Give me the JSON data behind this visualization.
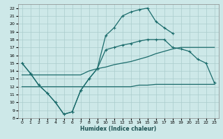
{
  "bg_color": "#cde8e8",
  "grid_color": "#aacccc",
  "line_color": "#1a6b6b",
  "line_width": 0.9,
  "xlabel": "Humidex (Indice chaleur)",
  "xlim": [
    -0.5,
    23.5
  ],
  "ylim": [
    8,
    22.5
  ],
  "yticks": [
    8,
    9,
    10,
    11,
    12,
    13,
    14,
    15,
    16,
    17,
    18,
    19,
    20,
    21,
    22
  ],
  "xticks": [
    0,
    1,
    2,
    3,
    4,
    5,
    6,
    7,
    8,
    9,
    10,
    11,
    12,
    13,
    14,
    15,
    16,
    17,
    18,
    19,
    20,
    21,
    22,
    23
  ],
  "curve_upper_peak": {
    "x": [
      0,
      1,
      2,
      3,
      4,
      5,
      6,
      7,
      8,
      9,
      10,
      11,
      12,
      13,
      14,
      15,
      16,
      17,
      18,
      19,
      20,
      21,
      22,
      23
    ],
    "y": [
      15.0,
      13.7,
      12.2,
      11.2,
      10.0,
      8.5,
      8.8,
      11.5,
      13.0,
      14.3,
      18.5,
      19.5,
      21.0,
      21.5,
      21.8,
      22.0,
      20.3,
      19.5,
      18.8,
      null,
      null,
      null,
      null,
      null
    ],
    "markers": true
  },
  "curve_lower_valley": {
    "x": [
      0,
      1,
      2,
      3,
      4,
      5,
      6,
      7,
      8,
      9,
      10,
      11,
      12,
      13,
      14,
      15,
      16,
      17,
      18,
      19,
      20,
      21,
      22,
      23
    ],
    "y": [
      15.0,
      13.7,
      12.2,
      11.2,
      10.0,
      8.5,
      8.8,
      11.5,
      13.0,
      14.3,
      16.7,
      17.0,
      17.3,
      17.5,
      17.8,
      18.0,
      18.0,
      18.0,
      17.0,
      16.8,
      16.5,
      15.5,
      15.0,
      12.5
    ],
    "markers": true
  },
  "curve_mid_line": {
    "x": [
      0,
      1,
      2,
      3,
      4,
      5,
      6,
      7,
      8,
      9,
      10,
      11,
      12,
      13,
      14,
      15,
      16,
      17,
      18,
      19,
      20,
      21,
      22,
      23
    ],
    "y": [
      13.5,
      13.5,
      13.5,
      13.5,
      13.5,
      13.5,
      13.5,
      13.5,
      14.0,
      14.3,
      14.5,
      14.8,
      15.0,
      15.2,
      15.5,
      15.8,
      16.2,
      16.5,
      16.8,
      17.0,
      17.0,
      17.0,
      17.0,
      17.0
    ],
    "markers": false
  },
  "curve_flat_line": {
    "x": [
      0,
      1,
      2,
      3,
      4,
      5,
      6,
      7,
      8,
      9,
      10,
      11,
      12,
      13,
      14,
      15,
      16,
      17,
      18,
      19,
      20,
      21,
      22,
      23
    ],
    "y": [
      12.0,
      12.0,
      12.0,
      12.0,
      12.0,
      12.0,
      12.0,
      12.0,
      12.0,
      12.0,
      12.0,
      12.0,
      12.0,
      12.0,
      12.2,
      12.2,
      12.3,
      12.3,
      12.3,
      12.3,
      12.3,
      12.3,
      12.3,
      12.3
    ],
    "markers": false
  }
}
